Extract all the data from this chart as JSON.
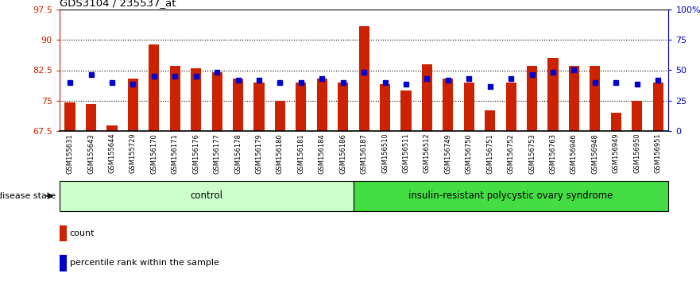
{
  "title": "GDS3104 / 235537_at",
  "samples": [
    "GSM155631",
    "GSM155643",
    "GSM155644",
    "GSM155729",
    "GSM156170",
    "GSM156171",
    "GSM156176",
    "GSM156177",
    "GSM156178",
    "GSM156179",
    "GSM156180",
    "GSM156181",
    "GSM156184",
    "GSM156186",
    "GSM156187",
    "GSM156510",
    "GSM156511",
    "GSM156512",
    "GSM156749",
    "GSM156750",
    "GSM156751",
    "GSM156752",
    "GSM156753",
    "GSM156763",
    "GSM156946",
    "GSM156948",
    "GSM156949",
    "GSM156950",
    "GSM156951"
  ],
  "bar_values": [
    74.5,
    74.2,
    68.8,
    80.5,
    89.0,
    83.5,
    83.0,
    82.0,
    80.5,
    79.5,
    75.0,
    79.5,
    80.5,
    79.5,
    93.5,
    79.0,
    77.5,
    84.0,
    80.5,
    79.5,
    72.5,
    79.5,
    83.5,
    85.5,
    83.5,
    83.5,
    72.0,
    75.0,
    79.5
  ],
  "percentile_values": [
    79.5,
    81.5,
    79.5,
    79.0,
    81.0,
    81.0,
    81.0,
    82.0,
    80.0,
    80.0,
    79.5,
    79.5,
    80.5,
    79.5,
    82.0,
    79.5,
    79.0,
    80.5,
    80.0,
    80.5,
    78.5,
    80.5,
    81.5,
    82.0,
    82.5,
    79.5,
    79.5,
    79.0,
    80.0
  ],
  "control_count": 14,
  "ylim_left": [
    67.5,
    97.5
  ],
  "ylim_right": [
    0,
    100
  ],
  "yticks_left": [
    67.5,
    75.0,
    82.5,
    90.0,
    97.5
  ],
  "yticks_right": [
    0,
    25,
    50,
    75,
    100
  ],
  "ytick_labels_left": [
    "67.5",
    "75",
    "82.5",
    "90",
    "97.5"
  ],
  "ytick_labels_right": [
    "0",
    "25",
    "50",
    "75",
    "100%"
  ],
  "hlines": [
    75.0,
    82.5,
    90.0
  ],
  "bar_color": "#CC2200",
  "percentile_color": "#0000CC",
  "control_label": "control",
  "disease_label": "insulin-resistant polycystic ovary syndrome",
  "control_bg_light": "#CCFFCC",
  "disease_bg": "#44DD44",
  "legend_count": "count",
  "legend_pct": "percentile rank within the sample",
  "bar_width": 0.5
}
